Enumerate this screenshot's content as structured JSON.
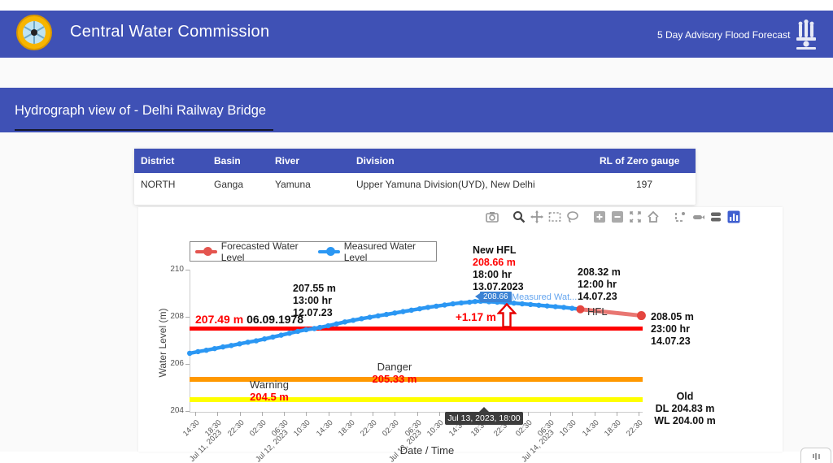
{
  "header": {
    "app_title": "Central Water Commission",
    "right_label": "5 Day Advisory Flood Forecast",
    "logo": "cwc-round-logo",
    "emblem": "emblem-of-india"
  },
  "page": {
    "title": "Hydrograph view of - Delhi Railway Bridge"
  },
  "station_table": {
    "columns": [
      "District",
      "Basin",
      "River",
      "Division",
      "RL of Zero gauge"
    ],
    "rows": [
      [
        "NORTH",
        "Ganga",
        "Yamuna",
        "Upper Yamuna Division(UYD), New Delhi",
        "197"
      ]
    ]
  },
  "modebar_icons": [
    "download-plot",
    "zoom",
    "pan",
    "box-select",
    "lasso-select",
    "zoom-in",
    "zoom-out",
    "autoscale",
    "reset-axes",
    "toggle-spikelines",
    "hover-closest",
    "hover-compare",
    "plotly-logo"
  ],
  "chart_data": {
    "type": "line",
    "xlabel": "Date / Time",
    "ylabel": "Water Level (m)",
    "ylim": [
      204,
      210.5
    ],
    "yticks": [
      204,
      206,
      208,
      210
    ],
    "x_tick_labels": [
      "14:30",
      "18:30",
      "22:30",
      "02:30",
      "06:30",
      "10:30",
      "14:30",
      "18:30",
      "22:30",
      "02:30",
      "06:30",
      "10:30",
      "14:30",
      "18:30",
      "22:30",
      "02:30",
      "06:30",
      "10:30",
      "14:30",
      "18:30",
      "22:30"
    ],
    "x_date_labels": [
      "Jul 11, 2023",
      "Jul 12, 2023",
      "Jul 13, 2023",
      "Jul 14, 2023"
    ],
    "legend": [
      {
        "name": "Forecasted Water Level",
        "color": "#e4554f"
      },
      {
        "name": "Measured Water Level",
        "color": "#2b97f3"
      }
    ],
    "series": [
      {
        "name": "Measured Water Level",
        "color": "#2b97f3",
        "points": [
          {
            "t": "Jul 11 13:30",
            "v": 206.45
          },
          {
            "t": "Jul 11 15:00",
            "v": 206.52
          },
          {
            "t": "Jul 11 16:30",
            "v": 206.58
          },
          {
            "t": "Jul 11 18:00",
            "v": 206.65
          },
          {
            "t": "Jul 11 19:30",
            "v": 206.72
          },
          {
            "t": "Jul 11 21:00",
            "v": 206.78
          },
          {
            "t": "Jul 11 22:30",
            "v": 206.85
          },
          {
            "t": "Jul 12 00:00",
            "v": 206.92
          },
          {
            "t": "Jul 12 01:30",
            "v": 206.98
          },
          {
            "t": "Jul 12 03:00",
            "v": 207.06
          },
          {
            "t": "Jul 12 04:30",
            "v": 207.14
          },
          {
            "t": "Jul 12 06:00",
            "v": 207.22
          },
          {
            "t": "Jul 12 07:30",
            "v": 207.3
          },
          {
            "t": "Jul 12 09:00",
            "v": 207.38
          },
          {
            "t": "Jul 12 10:30",
            "v": 207.45
          },
          {
            "t": "Jul 12 12:00",
            "v": 207.5
          },
          {
            "t": "Jul 12 13:00",
            "v": 207.55
          },
          {
            "t": "Jul 12 14:30",
            "v": 207.62
          },
          {
            "t": "Jul 12 16:00",
            "v": 207.7
          },
          {
            "t": "Jul 12 17:30",
            "v": 207.78
          },
          {
            "t": "Jul 12 19:00",
            "v": 207.85
          },
          {
            "t": "Jul 12 20:30",
            "v": 207.92
          },
          {
            "t": "Jul 12 22:00",
            "v": 207.98
          },
          {
            "t": "Jul 12 23:30",
            "v": 208.04
          },
          {
            "t": "Jul 13 01:00",
            "v": 208.1
          },
          {
            "t": "Jul 13 02:30",
            "v": 208.16
          },
          {
            "t": "Jul 13 04:00",
            "v": 208.22
          },
          {
            "t": "Jul 13 05:30",
            "v": 208.28
          },
          {
            "t": "Jul 13 07:00",
            "v": 208.34
          },
          {
            "t": "Jul 13 08:30",
            "v": 208.4
          },
          {
            "t": "Jul 13 10:00",
            "v": 208.45
          },
          {
            "t": "Jul 13 11:30",
            "v": 208.5
          },
          {
            "t": "Jul 13 13:00",
            "v": 208.55
          },
          {
            "t": "Jul 13 14:30",
            "v": 208.59
          },
          {
            "t": "Jul 13 16:00",
            "v": 208.62
          },
          {
            "t": "Jul 13 17:00",
            "v": 208.65
          },
          {
            "t": "Jul 13 18:00",
            "v": 208.66
          },
          {
            "t": "Jul 13 19:30",
            "v": 208.64
          },
          {
            "t": "Jul 13 21:00",
            "v": 208.62
          },
          {
            "t": "Jul 13 22:30",
            "v": 208.6
          },
          {
            "t": "Jul 14 00:00",
            "v": 208.58
          },
          {
            "t": "Jul 14 01:30",
            "v": 208.55
          },
          {
            "t": "Jul 14 03:00",
            "v": 208.52
          },
          {
            "t": "Jul 14 04:30",
            "v": 208.49
          },
          {
            "t": "Jul 14 06:00",
            "v": 208.46
          },
          {
            "t": "Jul 14 07:30",
            "v": 208.43
          },
          {
            "t": "Jul 14 09:00",
            "v": 208.4
          },
          {
            "t": "Jul 14 10:30",
            "v": 208.36
          },
          {
            "t": "Jul 14 12:00",
            "v": 208.32
          }
        ]
      },
      {
        "name": "Forecasted Water Level",
        "color": "#e4554f",
        "points": [
          {
            "t": "Jul 14 12:00",
            "v": 208.32
          },
          {
            "t": "Jul 14 23:00",
            "v": 208.05
          }
        ]
      }
    ],
    "reference_lines": {
      "hfl": {
        "label": "HFL",
        "value": 207.49,
        "color": "#ff0000"
      },
      "danger": {
        "label": "Danger",
        "value": 205.33,
        "color": "#ff9800",
        "value_text": "205.33 m"
      },
      "warning": {
        "label": "Warning",
        "value": 204.5,
        "color": "#ffff00",
        "value_text": "204.5 m"
      }
    },
    "annotations": {
      "prev_peak": {
        "line1": "207.55 m",
        "line2": "13:00 hr",
        "line3": "12.07.23"
      },
      "old_hfl": {
        "value": "207.49 m",
        "date": "06.09.1978"
      },
      "new_hfl": {
        "title": "New HFL",
        "value": "208.66 m",
        "line2": "18:00 hr",
        "line3": "13.07.2023"
      },
      "measured_end": {
        "line1": "208.32 m",
        "line2": "12:00 hr",
        "line3": "14.07.23"
      },
      "forecast_end": {
        "line1": "208.05 m",
        "line2": "23:00 hr",
        "line3": "14.07.23"
      },
      "old_levels": {
        "title": "Old",
        "dl": "DL 204.83 m",
        "wl": "WL 204.00 m"
      },
      "rise": "+1.17 m",
      "hfl_label": "HFL"
    },
    "hover": {
      "x_label": "Jul 13, 2023, 18:00",
      "point_value": "208.66",
      "series_name_truncated": "Measured Wat..."
    }
  }
}
